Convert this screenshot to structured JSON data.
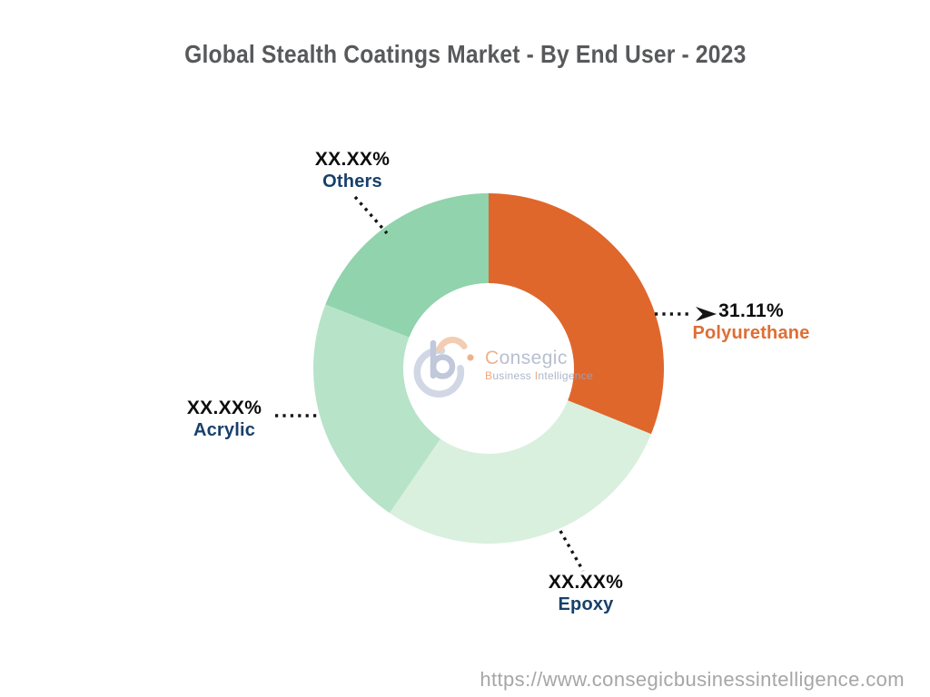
{
  "page": {
    "title": "Global Stealth Coatings Market - By End User - 2023",
    "footer_url": "https://www.consegicbusinessintelligence.com"
  },
  "logo": {
    "brand_initial": "C",
    "brand_rest": "onsegic",
    "tagline_initial_1": "B",
    "tagline_part_1": "usiness ",
    "tagline_initial_2": "I",
    "tagline_part_2": "ntelligence"
  },
  "chart_data": {
    "type": "pie",
    "subtype": "donut",
    "title": "Global Stealth Coatings Market - By End User - 2023",
    "year": "2023",
    "legend_position": "callout-labels",
    "inner_radius_ratio": 0.487,
    "start_angle_deg_from_top": 0,
    "direction": "clockwise",
    "segments": [
      {
        "label": "Polyurethane",
        "display_value": "31.11%",
        "value_pct": 31.11,
        "color": "#df672c",
        "label_color": "#de6e35",
        "highlighted": true
      },
      {
        "label": "Epoxy",
        "display_value": "XX.XX%",
        "value_pct": 28.45,
        "color": "#d9f0de",
        "label_color": "#17406b",
        "highlighted": false
      },
      {
        "label": "Acrylic",
        "display_value": "XX.XX%",
        "value_pct": 21.39,
        "color": "#b7e3c9",
        "label_color": "#17406b",
        "highlighted": false
      },
      {
        "label": "Others",
        "display_value": "XX.XX%",
        "value_pct": 19.05,
        "color": "#90d3ad",
        "label_color": "#17406b",
        "highlighted": false
      }
    ],
    "leader_line_color": "#141414",
    "value_text_color": "#0d0d0d"
  }
}
